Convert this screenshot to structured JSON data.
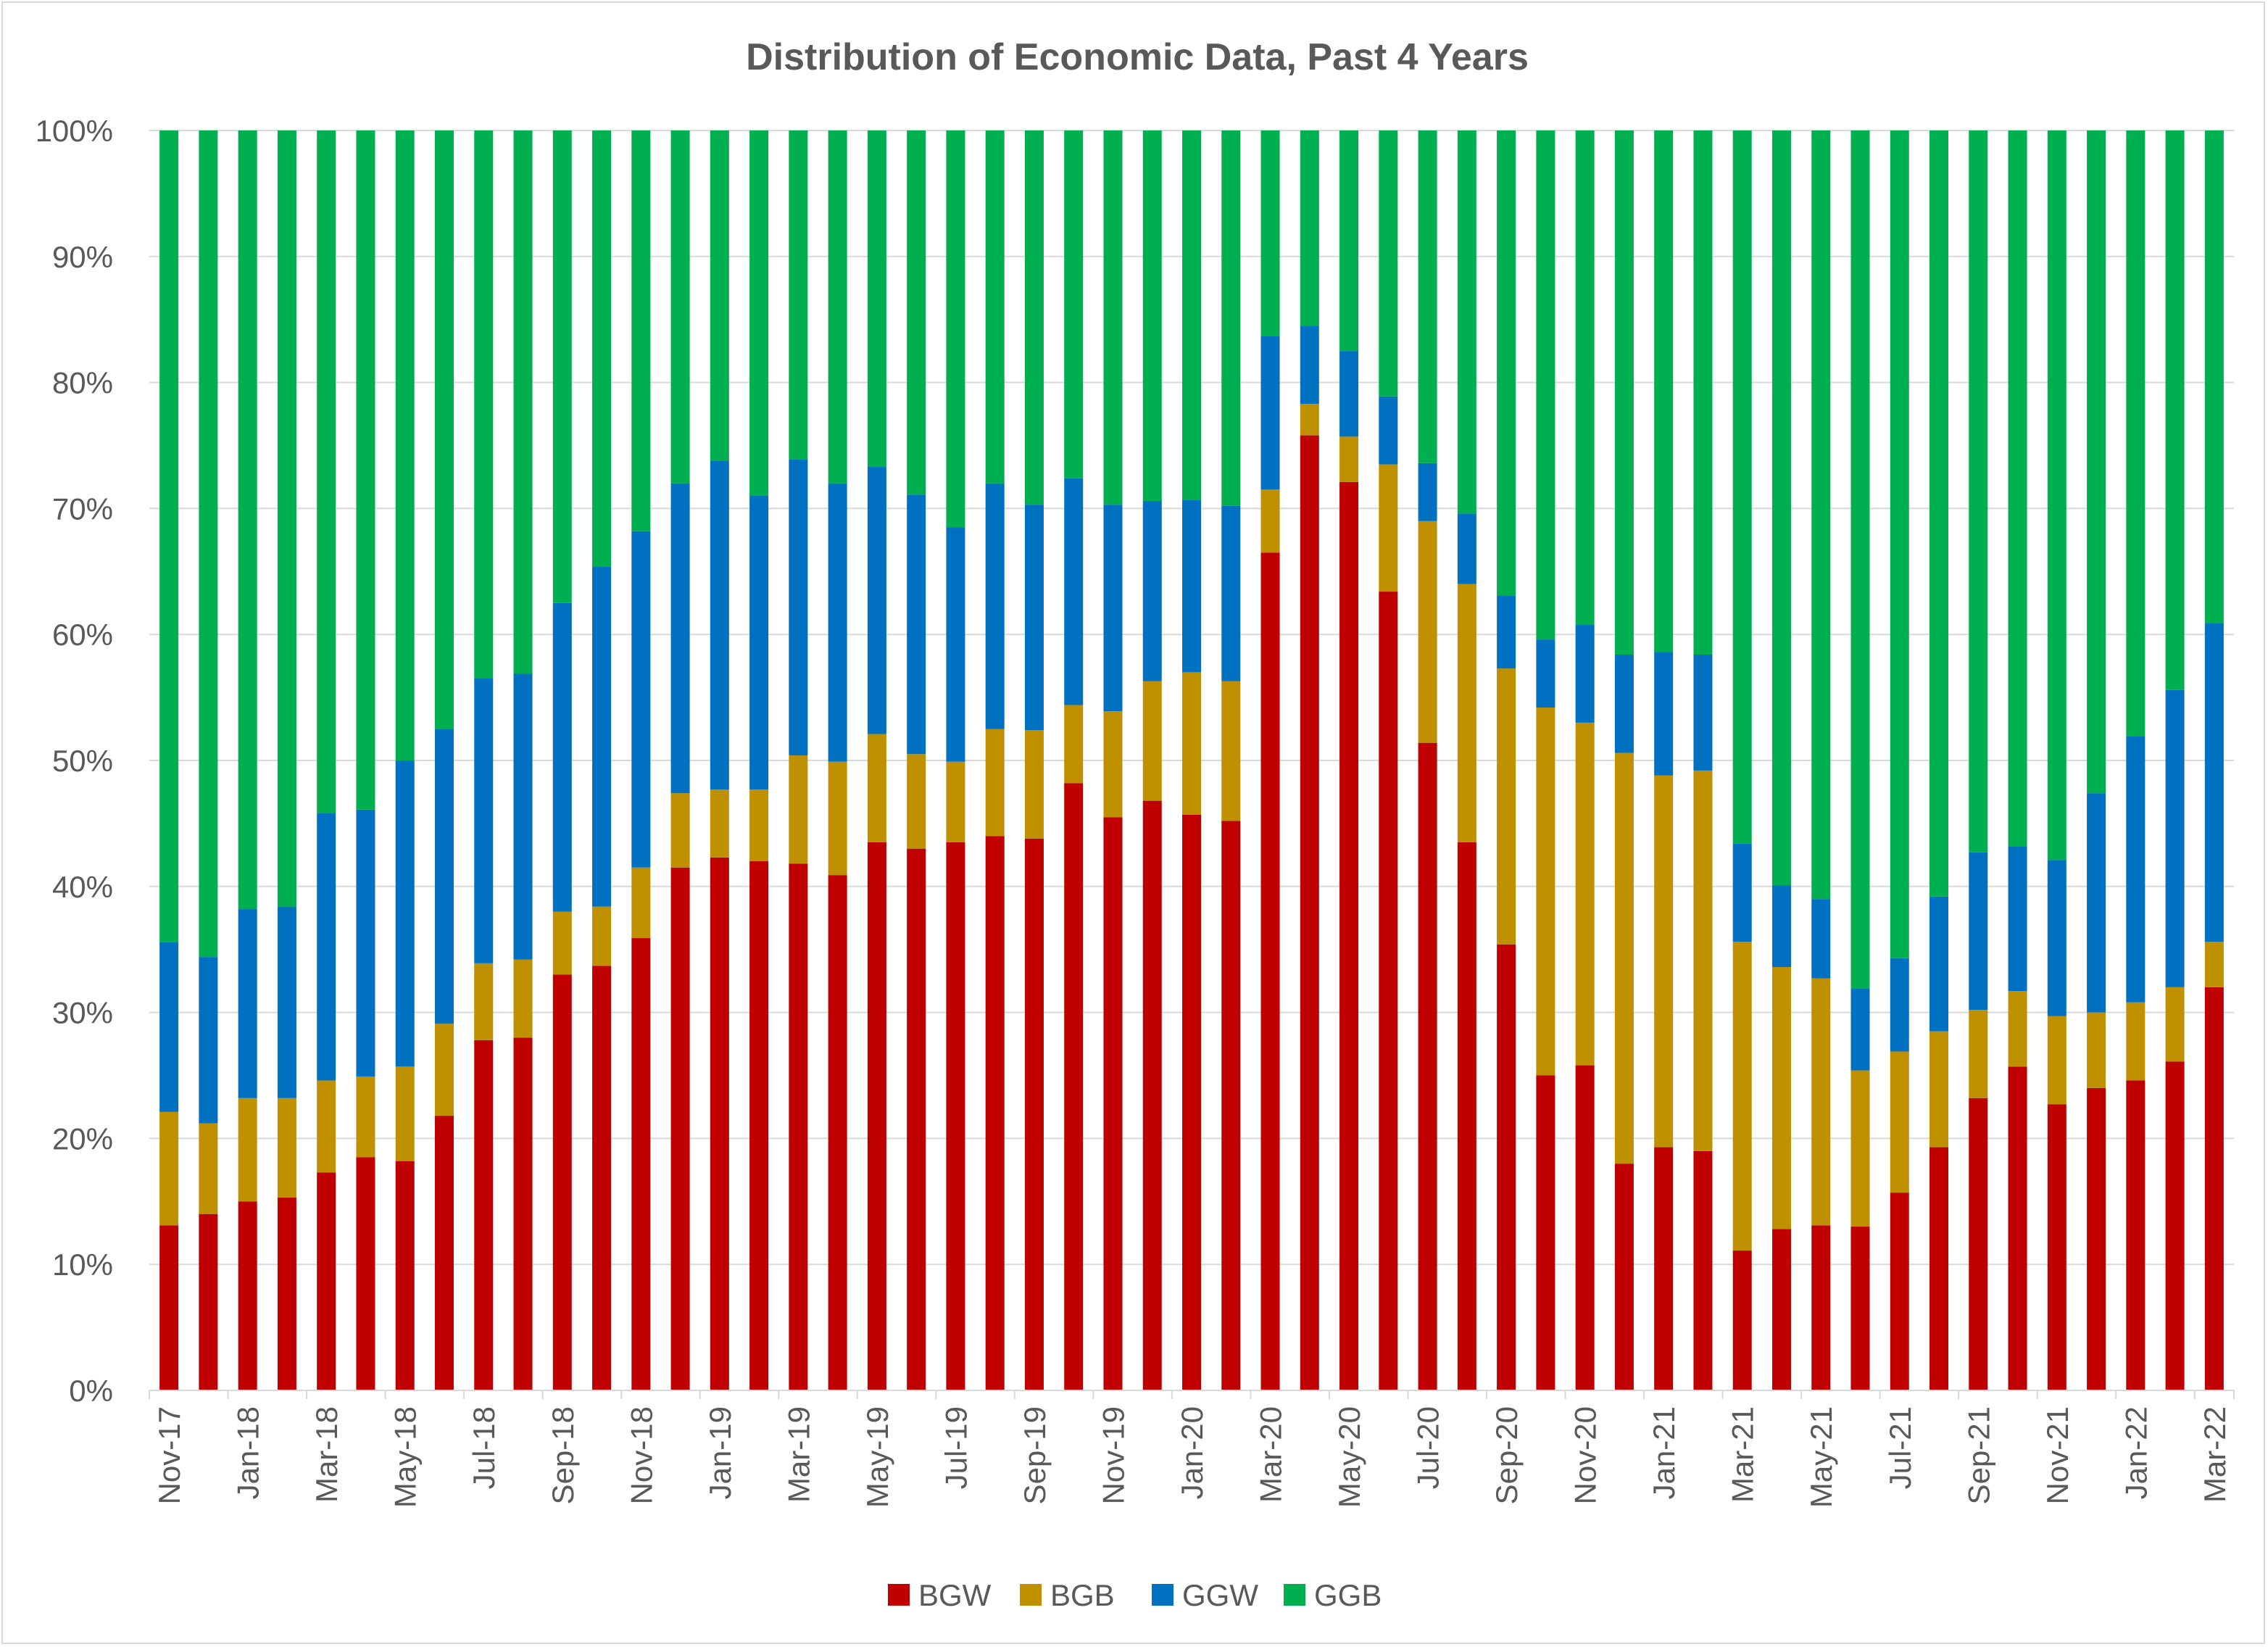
{
  "chart_data": {
    "type": "bar",
    "stacked": true,
    "percent_stacked": true,
    "title": "Distribution of Economic Data, Past 4 Years",
    "xlabel": "",
    "ylabel": "",
    "ylim": [
      0,
      100
    ],
    "y_ticks": [
      "0%",
      "10%",
      "20%",
      "30%",
      "40%",
      "50%",
      "60%",
      "70%",
      "80%",
      "90%",
      "100%"
    ],
    "grid": true,
    "legend_position": "bottom",
    "colors": {
      "BGW": "#C00000",
      "BGB": "#BF9000",
      "GGW": "#0070C0",
      "GGB": "#00B050"
    },
    "categories": [
      "Nov-17",
      "Dec-17",
      "Jan-18",
      "Feb-18",
      "Mar-18",
      "Apr-18",
      "May-18",
      "Jun-18",
      "Jul-18",
      "Aug-18",
      "Sep-18",
      "Oct-18",
      "Nov-18",
      "Dec-18",
      "Jan-19",
      "Feb-19",
      "Mar-19",
      "Apr-19",
      "May-19",
      "Jun-19",
      "Jul-19",
      "Aug-19",
      "Sep-19",
      "Oct-19",
      "Nov-19",
      "Dec-19",
      "Jan-20",
      "Feb-20",
      "Mar-20",
      "Apr-20",
      "May-20",
      "Jun-20",
      "Jul-20",
      "Aug-20",
      "Sep-20",
      "Oct-20",
      "Nov-20",
      "Dec-20",
      "Jan-21",
      "Feb-21",
      "Mar-21",
      "Apr-21",
      "May-21",
      "Jun-21",
      "Jul-21",
      "Aug-21",
      "Sep-21",
      "Oct-21",
      "Nov-21",
      "Dec-21",
      "Jan-22",
      "Feb-22",
      "Mar-22"
    ],
    "x_tick_labels": [
      "Nov-17",
      "Jan-18",
      "Mar-18",
      "May-18",
      "Jul-18",
      "Sep-18",
      "Nov-18",
      "Jan-19",
      "Mar-19",
      "May-19",
      "Jul-19",
      "Sep-19",
      "Nov-19",
      "Jan-20",
      "Mar-20",
      "May-20",
      "Jul-20",
      "Sep-20",
      "Nov-20",
      "Jan-21",
      "Mar-21",
      "May-21",
      "Jul-21",
      "Sep-21",
      "Nov-21",
      "Jan-22",
      "Mar-22"
    ],
    "series": [
      {
        "name": "BGW",
        "values": [
          13.1,
          14.0,
          15.0,
          15.3,
          17.3,
          18.5,
          18.2,
          21.8,
          27.8,
          28.0,
          33.0,
          33.7,
          35.9,
          41.5,
          42.3,
          42.0,
          41.8,
          40.9,
          43.5,
          43.0,
          43.5,
          44.0,
          43.8,
          48.2,
          45.5,
          46.8,
          45.7,
          45.2,
          66.5,
          75.8,
          72.1,
          63.4,
          51.4,
          43.5,
          35.4,
          25.0,
          25.8,
          18.0,
          19.3,
          19.0,
          11.1,
          12.8,
          13.1,
          13.0,
          15.7,
          19.3,
          23.2,
          25.7,
          22.7,
          24.0,
          24.6,
          26.1,
          32.0
        ]
      },
      {
        "name": "BGB",
        "values": [
          9.0,
          7.2,
          8.2,
          7.9,
          7.3,
          6.4,
          7.5,
          7.3,
          6.1,
          6.2,
          5.0,
          4.7,
          5.6,
          5.9,
          5.4,
          5.7,
          8.6,
          9.0,
          8.6,
          7.5,
          6.4,
          8.5,
          8.6,
          6.2,
          8.4,
          9.5,
          11.3,
          11.1,
          5.0,
          2.5,
          3.6,
          10.1,
          17.6,
          20.5,
          21.9,
          29.2,
          27.2,
          32.6,
          29.5,
          30.2,
          24.5,
          20.8,
          19.6,
          12.4,
          11.2,
          9.2,
          7.0,
          6.0,
          7.0,
          6.0,
          6.2,
          5.9,
          3.6
        ]
      },
      {
        "name": "GGW",
        "values": [
          13.5,
          13.2,
          15.0,
          15.2,
          21.2,
          21.2,
          24.3,
          23.4,
          22.6,
          22.7,
          24.5,
          27.0,
          26.7,
          24.6,
          26.1,
          23.3,
          23.5,
          22.1,
          21.2,
          20.6,
          18.6,
          19.5,
          17.9,
          18.0,
          16.4,
          14.3,
          13.7,
          13.9,
          12.2,
          6.2,
          6.8,
          5.4,
          4.6,
          5.6,
          5.8,
          5.4,
          7.8,
          7.8,
          9.8,
          9.2,
          7.8,
          6.5,
          6.3,
          6.5,
          7.4,
          10.7,
          12.5,
          11.5,
          12.4,
          17.4,
          21.1,
          23.6,
          25.3
        ]
      },
      {
        "name": "GGB",
        "values": [
          64.4,
          65.6,
          61.8,
          61.6,
          54.2,
          53.9,
          50.0,
          47.5,
          43.5,
          43.1,
          37.5,
          34.6,
          31.8,
          28.0,
          26.2,
          29.0,
          26.1,
          28.0,
          26.7,
          28.9,
          31.5,
          28.0,
          29.7,
          27.6,
          29.7,
          29.4,
          29.3,
          29.8,
          16.3,
          15.5,
          17.5,
          21.1,
          26.4,
          30.4,
          36.9,
          40.4,
          39.2,
          41.6,
          41.4,
          41.6,
          56.6,
          59.9,
          61.0,
          68.1,
          65.7,
          60.8,
          57.3,
          56.8,
          57.9,
          52.6,
          48.1,
          44.4,
          39.1
        ]
      }
    ]
  }
}
